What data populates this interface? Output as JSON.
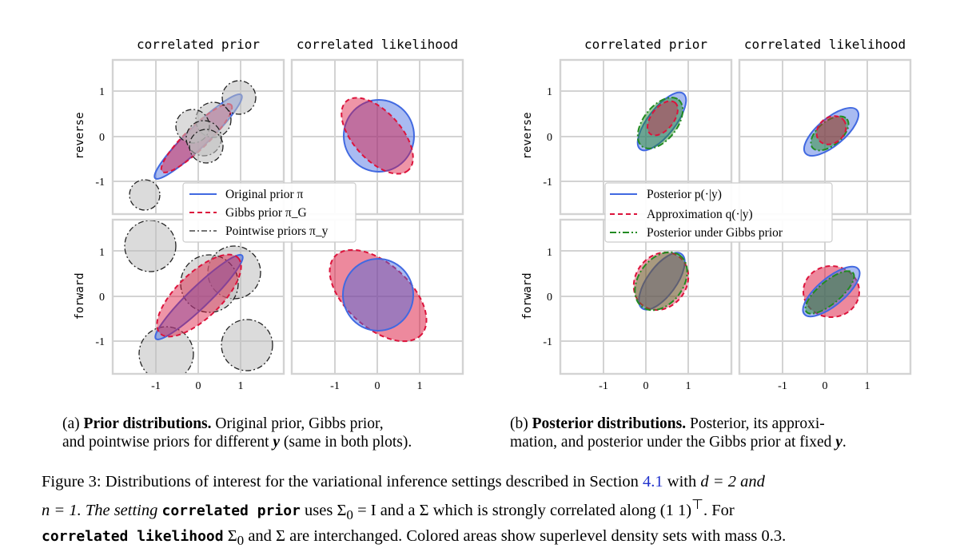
{
  "columns": {
    "correlated_prior": "correlated prior",
    "correlated_likelihood": "correlated likelihood"
  },
  "rows": {
    "reverse": "reverse",
    "forward": "forward"
  },
  "ticks": [
    "-1",
    "0",
    "1"
  ],
  "legend_a": {
    "items": [
      {
        "label": "Original prior π",
        "color": "#4169e1",
        "style": "solid"
      },
      {
        "label": "Gibbs prior π_G",
        "color": "#dc143c",
        "style": "dashed"
      },
      {
        "label": "Pointwise priors π_y",
        "color": "#222222",
        "style": "dashdot"
      }
    ]
  },
  "legend_b": {
    "items": [
      {
        "label": "Posterior p(·|y)",
        "color": "#4169e1",
        "style": "solid"
      },
      {
        "label": "Approximation q(·|y)",
        "color": "#dc143c",
        "style": "dashed"
      },
      {
        "label": "Posterior under Gibbs prior",
        "color": "#228b22",
        "style": "dashdot"
      }
    ]
  },
  "subcaption_a": {
    "tag": "(a)",
    "bold": "Prior distributions.",
    "rest_line1": " Original prior, Gibbs prior,",
    "line2_pre": "and pointwise priors for different ",
    "var": "y",
    "line2_post": " (same in both plots)."
  },
  "subcaption_b": {
    "tag": "(b)",
    "bold": "Posterior distributions.",
    "rest_line1": " Posterior, its approxi-",
    "line2_pre": "mation, and posterior under the Gibbs prior at fixed ",
    "var": "y",
    "line2_post": "."
  },
  "caption": {
    "p1": "Figure 3: Distributions of interest for the variational inference settings described in Section ",
    "ref": "4.1",
    "p2": " with ",
    "p3": "d = 2 and",
    "l2a": "n = 1.  The setting ",
    "tt1": "correlated prior",
    "l2b": " uses Σ",
    "l2c": " = I and a Σ which is strongly correlated along (1   1)",
    "l2d": ".  For",
    "tt2": "correlated likelihood",
    "l3a": " Σ",
    "l3b": " and Σ are interchanged. Colored areas show superlevel density sets with mass 0.3."
  },
  "colors": {
    "blue": "#4169e1",
    "red": "#dc143c",
    "green": "#228b22",
    "gray": "#bdbdbd",
    "grid": "#d3d3d3"
  }
}
